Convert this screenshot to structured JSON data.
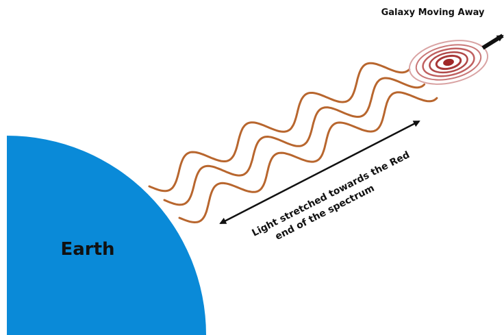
{
  "diagram": {
    "galaxy_label": "Galaxy Moving Away",
    "arrow_label": [
      "Light stretched towards the Red",
      "end of the spectrum"
    ],
    "earth_label": "Earth"
  }
}
